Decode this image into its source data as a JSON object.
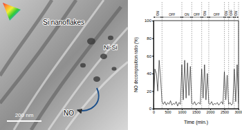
{
  "chart_data": {
    "type": "line",
    "x_label": "Time (min.)",
    "y_label": "NO decomposition ratio (%)",
    "x": [
      0,
      50,
      100,
      150,
      200,
      250,
      300,
      350,
      400,
      450,
      500,
      550,
      600,
      650,
      700,
      750,
      800,
      850,
      900,
      950,
      1000,
      1050,
      1100,
      1150,
      1200,
      1250,
      1300,
      1350,
      1400,
      1450,
      1500,
      1550,
      1600,
      1650,
      1700,
      1750,
      1800,
      1850,
      1900,
      1950,
      2000,
      2050,
      2100,
      2150,
      2200,
      2250,
      2300,
      2350,
      2400,
      2450,
      2500,
      2550,
      2600,
      2650,
      2700,
      2750,
      2800,
      2850,
      2900,
      2950,
      3000
    ],
    "values": [
      5,
      45,
      40,
      20,
      55,
      35,
      8,
      5,
      8,
      4,
      7,
      5,
      9,
      4,
      6,
      5,
      8,
      3,
      7,
      5,
      50,
      10,
      55,
      12,
      52,
      15,
      48,
      6,
      5,
      8,
      4,
      6,
      7,
      5,
      45,
      12,
      50,
      10,
      40,
      6,
      5,
      8,
      4,
      6,
      5,
      7,
      4,
      6,
      8,
      5,
      42,
      10,
      38,
      5,
      7,
      4,
      6,
      45,
      8,
      50,
      6
    ],
    "color": "#222222",
    "xlim": [
      0,
      3000
    ],
    "xticks": [
      0,
      500,
      1000,
      1500,
      2000,
      2500,
      3000
    ],
    "ylim": [
      0,
      100
    ],
    "yticks": [
      0,
      20,
      40,
      60,
      80,
      100
    ],
    "periods": [
      {
        "label": "ON",
        "start": 0,
        "end": 300
      },
      {
        "label": "OFF",
        "start": 300,
        "end": 1000
      },
      {
        "label": "ON",
        "start": 1000,
        "end": 1350
      },
      {
        "label": "OFF",
        "start": 1350,
        "end": 1700
      },
      {
        "label": "ON",
        "start": 1700,
        "end": 1950
      },
      {
        "label": "OFF",
        "start": 1950,
        "end": 2500
      },
      {
        "label": "ON",
        "start": 2500,
        "end": 2650
      },
      {
        "label": "OFF",
        "start": 2650,
        "end": 2850
      },
      {
        "label": "ON",
        "start": 2850,
        "end": 3000
      }
    ]
  },
  "image": {
    "labels": {
      "flakes": "Si nanoflakes",
      "particles": "Ni-Si",
      "gas": "NO"
    },
    "scale_bar": "200 nm"
  }
}
